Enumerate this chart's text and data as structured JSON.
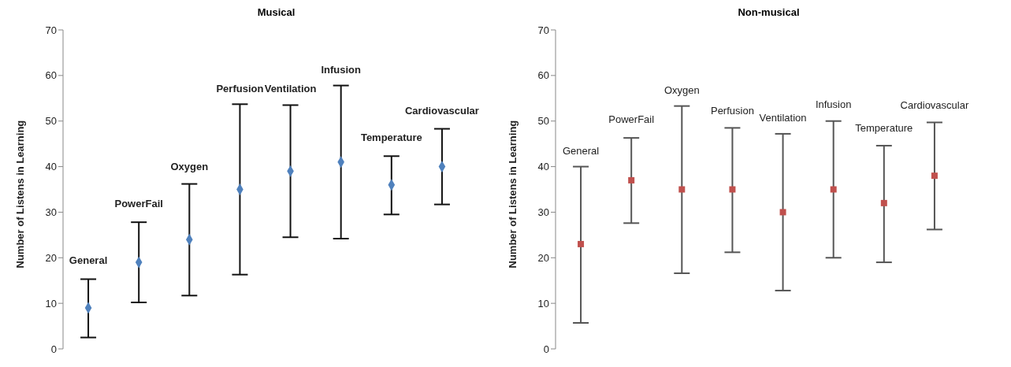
{
  "chart_data": [
    {
      "type": "scatter",
      "title": "Musical",
      "ylabel": "Number of Listens in Learning",
      "categories": [
        "General",
        "PowerFail",
        "Oxygen",
        "Perfusion",
        "Ventilation",
        "Infusion",
        "Temperature",
        "Cardiovascular"
      ],
      "marker": "diamond",
      "grid": false,
      "legend": false,
      "ylim": [
        0,
        70
      ],
      "yticks": [
        0,
        10,
        20,
        30,
        40,
        50,
        60,
        70
      ],
      "series": [
        {
          "color": "#4f81bd",
          "values": [
            9,
            19,
            24,
            35,
            39,
            41,
            36,
            40
          ],
          "errors": [
            [
              2.5,
              15.3
            ],
            [
              10.2,
              27.8
            ],
            [
              11.7,
              36.2
            ],
            [
              16.3,
              53.7
            ],
            [
              24.5,
              53.5
            ],
            [
              24.2,
              57.8
            ],
            [
              29.5,
              42.3
            ],
            [
              31.7,
              48.3
            ]
          ]
        }
      ]
    },
    {
      "type": "scatter",
      "title": "Non-musical",
      "ylabel": "Number of Listens in Learning",
      "categories": [
        "General",
        "PowerFail",
        "Oxygen",
        "Perfusion",
        "Ventilation",
        "Infusion",
        "Temperature",
        "Cardiovascular"
      ],
      "marker": "square",
      "grid": false,
      "legend": false,
      "ylim": [
        0,
        70
      ],
      "yticks": [
        0,
        10,
        20,
        30,
        40,
        50,
        60,
        70
      ],
      "series": [
        {
          "color": "#c0504d",
          "values": [
            23,
            37,
            35,
            35,
            30,
            35,
            32,
            38
          ],
          "errors": [
            [
              5.7,
              40
            ],
            [
              27.6,
              46.3
            ],
            [
              16.6,
              53.3
            ],
            [
              21.2,
              48.5
            ],
            [
              12.8,
              47.2
            ],
            [
              20,
              50
            ],
            [
              19,
              44.6
            ],
            [
              26.2,
              49.7
            ]
          ]
        }
      ]
    }
  ]
}
